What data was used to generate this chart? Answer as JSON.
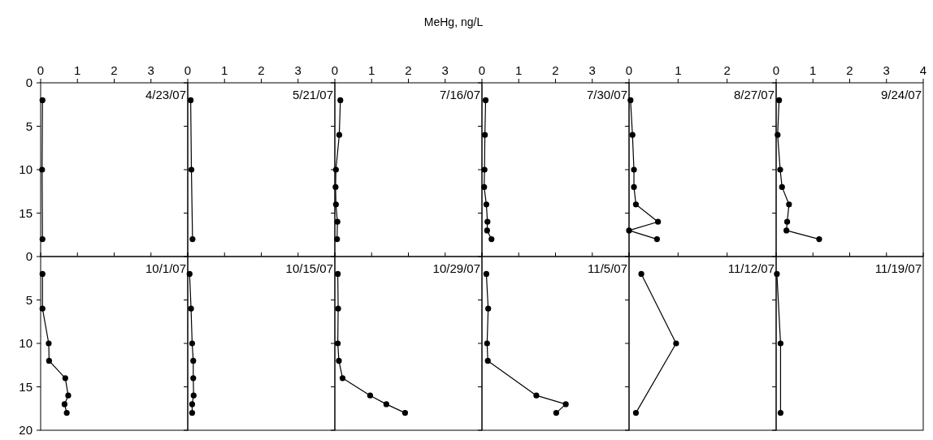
{
  "chart_data": [
    {
      "type": "line",
      "annotations": [
        "4/23/07"
      ],
      "xlim": [
        0,
        4
      ],
      "xticks": [
        0,
        1,
        2,
        3
      ],
      "ylim": [
        20,
        0
      ],
      "yticks": [
        0,
        5,
        10,
        15
      ],
      "marker": "circle",
      "line_style": "solid",
      "grid": false,
      "series": [
        {
          "color": "#000000",
          "x": [
            0.05,
            0.04,
            0.05
          ],
          "values": [
            2,
            10,
            18
          ]
        }
      ]
    },
    {
      "type": "line",
      "annotations": [
        "5/21/07"
      ],
      "xlim": [
        0,
        4
      ],
      "xticks": [
        0,
        1,
        2,
        3
      ],
      "ylim": [
        20,
        0
      ],
      "yticks": [
        0,
        5,
        10,
        15
      ],
      "tick_labels": "x",
      "marker": "circle",
      "line_style": "solid",
      "grid": false,
      "series": [
        {
          "color": "#000000",
          "x": [
            0.08,
            0.1,
            0.13
          ],
          "values": [
            2,
            10,
            18
          ]
        }
      ]
    },
    {
      "type": "line",
      "xlabel": "MeHg, ng/L",
      "annotations": [
        "7/16/07"
      ],
      "xlim": [
        0,
        4
      ],
      "xticks": [
        0,
        1,
        2,
        3
      ],
      "ylim": [
        20,
        0
      ],
      "yticks": [
        0,
        5,
        10,
        15
      ],
      "tick_labels": "x",
      "marker": "circle",
      "line_style": "solid",
      "grid": false,
      "series": [
        {
          "color": "#000000",
          "x": [
            0.15,
            0.12,
            0.03,
            0.02,
            0.03,
            0.07,
            0.06
          ],
          "values": [
            2,
            6,
            10,
            12,
            14,
            16,
            18
          ]
        }
      ]
    },
    {
      "type": "line",
      "annotations": [
        "7/30/07"
      ],
      "xlim": [
        0,
        4
      ],
      "xticks": [
        0,
        1,
        2,
        3
      ],
      "ylim": [
        20,
        0
      ],
      "yticks": [
        0,
        5,
        10,
        15
      ],
      "tick_labels": "x",
      "marker": "circle",
      "line_style": "solid",
      "grid": false,
      "series": [
        {
          "color": "#000000",
          "x": [
            0.1,
            0.08,
            0.07,
            0.06,
            0.12,
            0.15,
            0.14,
            0.26
          ],
          "values": [
            2,
            6,
            10,
            12,
            14,
            16,
            17,
            18
          ]
        }
      ]
    },
    {
      "type": "line",
      "annotations": [
        "8/27/07"
      ],
      "xlim": [
        0,
        3
      ],
      "xticks": [
        0,
        1,
        2
      ],
      "ylim": [
        20,
        0
      ],
      "yticks": [
        0,
        5,
        10,
        15
      ],
      "tick_labels": "x",
      "marker": "circle",
      "line_style": "solid",
      "grid": false,
      "series": [
        {
          "color": "#000000",
          "x": [
            0.03,
            0.07,
            0.1,
            0.1,
            0.14,
            0.59,
            0.0,
            0.57
          ],
          "values": [
            2,
            6,
            10,
            12,
            14,
            16,
            17,
            18
          ]
        }
      ]
    },
    {
      "type": "line",
      "annotations": [
        "9/24/07"
      ],
      "xlim": [
        0,
        4
      ],
      "xticks": [
        0,
        1,
        2,
        3,
        4
      ],
      "ylim": [
        20,
        0
      ],
      "yticks": [
        0,
        5,
        10,
        15
      ],
      "tick_labels": "x",
      "marker": "circle",
      "line_style": "solid",
      "grid": false,
      "series": [
        {
          "color": "#000000",
          "x": [
            0.08,
            0.04,
            0.11,
            0.16,
            0.35,
            0.3,
            0.28,
            1.17
          ],
          "values": [
            2,
            6,
            10,
            12,
            14,
            16,
            17,
            18
          ]
        }
      ]
    },
    {
      "type": "line",
      "annotations": [
        "10/1/07"
      ],
      "xlim": [
        0,
        4
      ],
      "xticks": [
        0,
        1,
        2,
        3,
        4
      ],
      "ylim": [
        20,
        0
      ],
      "yticks": [
        0,
        5,
        10,
        15,
        20
      ],
      "tick_labels": "y",
      "marker": "circle",
      "line_style": "solid",
      "grid": false,
      "series": [
        {
          "color": "#000000",
          "x": [
            0.05,
            0.05,
            0.22,
            0.23,
            0.67,
            0.75,
            0.65,
            0.71
          ],
          "values": [
            2,
            6,
            10,
            12,
            14,
            16,
            17,
            18
          ]
        }
      ]
    },
    {
      "type": "line",
      "annotations": [
        "10/15/07"
      ],
      "xlim": [
        0,
        4
      ],
      "xticks": [
        0,
        1,
        2,
        3,
        4
      ],
      "ylim": [
        20,
        0
      ],
      "yticks": [
        0,
        5,
        10,
        15,
        20
      ],
      "tick_labels": false,
      "marker": "circle",
      "line_style": "solid",
      "grid": false,
      "series": [
        {
          "color": "#000000",
          "x": [
            0.05,
            0.09,
            0.12,
            0.15,
            0.15,
            0.16,
            0.12,
            0.12
          ],
          "values": [
            2,
            6,
            10,
            12,
            14,
            16,
            17,
            18
          ]
        }
      ]
    },
    {
      "type": "line",
      "annotations": [
        "10/29/07"
      ],
      "xlim": [
        0,
        4
      ],
      "xticks": [
        0,
        1,
        2,
        3,
        4
      ],
      "ylim": [
        20,
        0
      ],
      "yticks": [
        0,
        5,
        10,
        15,
        20
      ],
      "tick_labels": false,
      "marker": "circle",
      "line_style": "solid",
      "grid": false,
      "series": [
        {
          "color": "#000000",
          "x": [
            0.08,
            0.09,
            0.08,
            0.11,
            0.21,
            0.96,
            1.4,
            1.91
          ],
          "values": [
            2,
            6,
            10,
            12,
            14,
            16,
            17,
            18
          ]
        }
      ]
    },
    {
      "type": "line",
      "annotations": [
        "11/5/07"
      ],
      "xlim": [
        0,
        4
      ],
      "xticks": [
        0,
        1,
        2,
        3,
        4
      ],
      "ylim": [
        20,
        0
      ],
      "yticks": [
        0,
        5,
        10,
        15,
        20
      ],
      "tick_labels": false,
      "marker": "circle",
      "line_style": "solid",
      "grid": false,
      "series": [
        {
          "color": "#000000",
          "x": [
            0.12,
            0.17,
            0.14,
            0.16,
            1.48,
            2.28,
            2.02
          ],
          "values": [
            2,
            6,
            10,
            12,
            16,
            17,
            18
          ]
        }
      ]
    },
    {
      "type": "line",
      "annotations": [
        "11/12/07"
      ],
      "xlim": [
        0,
        3
      ],
      "xticks": [
        0,
        1,
        2
      ],
      "ylim": [
        20,
        0
      ],
      "yticks": [
        0,
        5,
        10,
        15,
        20
      ],
      "tick_labels": false,
      "marker": "circle",
      "line_style": "solid",
      "grid": false,
      "series": [
        {
          "color": "#000000",
          "x": [
            0.25,
            0.96,
            0.14
          ],
          "values": [
            2,
            10,
            18
          ]
        }
      ]
    },
    {
      "type": "line",
      "annotations": [
        "11/19/07"
      ],
      "xlim": [
        0,
        4
      ],
      "xticks": [
        0,
        1,
        2,
        3,
        4
      ],
      "ylim": [
        20,
        0
      ],
      "yticks": [
        0,
        5,
        10,
        15,
        20
      ],
      "tick_labels": false,
      "marker": "circle",
      "line_style": "solid",
      "grid": false,
      "series": [
        {
          "color": "#000000",
          "x": [
            0.02,
            0.12,
            0.12
          ],
          "values": [
            2,
            10,
            18
          ]
        }
      ]
    }
  ]
}
